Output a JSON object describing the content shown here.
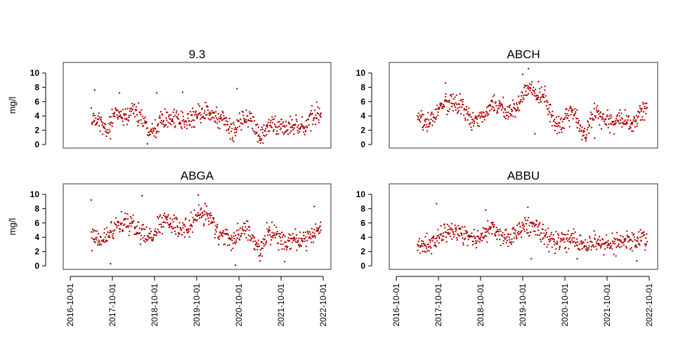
{
  "chart_data": [
    {
      "type": "scatter",
      "title": "9.3",
      "ylabel": "mg/l",
      "ylim": [
        0,
        10
      ],
      "yticks": [
        0,
        2,
        4,
        6,
        8,
        10
      ],
      "xlim": [
        "2016-10-01",
        "2022-10-01"
      ],
      "point_color": "#b00000",
      "trend": [
        [
          "2017-04-01",
          3.6
        ],
        [
          "2017-06-15",
          3.0
        ],
        [
          "2017-08-20",
          2.1
        ],
        [
          "2017-10-20",
          4.3
        ],
        [
          "2018-01-10",
          4.0
        ],
        [
          "2018-03-20",
          4.7
        ],
        [
          "2018-05-20",
          4.3
        ],
        [
          "2018-08-01",
          2.6
        ],
        [
          "2018-10-15",
          2.3
        ],
        [
          "2018-12-15",
          4.0
        ],
        [
          "2019-02-15",
          3.6
        ],
        [
          "2019-04-15",
          3.3
        ],
        [
          "2019-06-15",
          3.0
        ],
        [
          "2019-09-01",
          3.8
        ],
        [
          "2019-11-01",
          4.3
        ],
        [
          "2019-12-15",
          4.6
        ],
        [
          "2020-03-01",
          3.9
        ],
        [
          "2020-06-01",
          3.3
        ],
        [
          "2020-08-15",
          1.8
        ],
        [
          "2020-10-15",
          3.3
        ],
        [
          "2020-12-15",
          3.8
        ],
        [
          "2021-03-01",
          1.8
        ],
        [
          "2021-04-15",
          1.1
        ],
        [
          "2021-06-15",
          2.8
        ],
        [
          "2021-08-15",
          2.5
        ],
        [
          "2021-10-15",
          2.2
        ],
        [
          "2021-12-15",
          2.5
        ],
        [
          "2022-03-01",
          2.4
        ],
        [
          "2022-05-15",
          2.6
        ],
        [
          "2022-07-01",
          3.8
        ],
        [
          "2022-08-15",
          4.3
        ],
        [
          "2022-09-15",
          4.4
        ]
      ],
      "outliers": [
        [
          "2017-05-01",
          7.6
        ],
        [
          "2017-09-15",
          0.8
        ],
        [
          "2017-12-01",
          7.2
        ],
        [
          "2018-08-01",
          0.1
        ],
        [
          "2018-10-20",
          7.2
        ],
        [
          "2019-06-01",
          7.3
        ],
        [
          "2020-09-15",
          7.8
        ],
        [
          "2021-04-01",
          0.8
        ]
      ]
    },
    {
      "type": "scatter",
      "title": "ABCH",
      "ylabel": "",
      "ylim": [
        0,
        10
      ],
      "yticks": [
        0,
        2,
        4,
        6,
        8,
        10
      ],
      "xlim": [
        "2016-10-01",
        "2022-10-01"
      ],
      "point_color": "#b00000",
      "trend": [
        [
          "2017-04-01",
          3.7
        ],
        [
          "2017-06-15",
          2.6
        ],
        [
          "2017-08-15",
          3.6
        ],
        [
          "2017-10-15",
          5.2
        ],
        [
          "2018-01-01",
          6.3
        ],
        [
          "2018-03-01",
          5.6
        ],
        [
          "2018-05-01",
          5.0
        ],
        [
          "2018-07-15",
          3.4
        ],
        [
          "2018-09-15",
          3.2
        ],
        [
          "2018-11-15",
          4.5
        ],
        [
          "2019-01-15",
          6.0
        ],
        [
          "2019-03-15",
          5.2
        ],
        [
          "2019-05-15",
          4.6
        ],
        [
          "2019-07-15",
          4.8
        ],
        [
          "2019-09-15",
          5.9
        ],
        [
          "2019-11-01",
          7.5
        ],
        [
          "2019-12-15",
          8.2
        ],
        [
          "2020-02-15",
          6.5
        ],
        [
          "2020-04-15",
          6.5
        ],
        [
          "2020-06-15",
          3.6
        ],
        [
          "2020-08-15",
          2.5
        ],
        [
          "2020-10-15",
          3.8
        ],
        [
          "2020-12-15",
          4.3
        ],
        [
          "2021-02-15",
          2.1
        ],
        [
          "2021-04-01",
          1.4
        ],
        [
          "2021-06-01",
          4.0
        ],
        [
          "2021-08-01",
          4.2
        ],
        [
          "2021-10-01",
          3.2
        ],
        [
          "2021-12-01",
          3.3
        ],
        [
          "2022-02-01",
          3.8
        ],
        [
          "2022-04-01",
          2.8
        ],
        [
          "2022-06-01",
          3.3
        ],
        [
          "2022-07-15",
          4.5
        ],
        [
          "2022-09-15",
          5.5
        ]
      ],
      "outliers": [
        [
          "2017-12-01",
          8.6
        ],
        [
          "2019-10-01",
          9.8
        ],
        [
          "2019-11-20",
          10.6
        ],
        [
          "2020-02-15",
          8.8
        ],
        [
          "2020-01-15",
          1.5
        ],
        [
          "2021-04-01",
          0.8
        ],
        [
          "2021-06-15",
          0.9
        ]
      ]
    },
    {
      "type": "scatter",
      "title": "ABGA",
      "ylabel": "mg/l",
      "ylim": [
        0,
        10
      ],
      "yticks": [
        0,
        2,
        4,
        6,
        8,
        10
      ],
      "xlim": [
        "2016-10-01",
        "2022-10-01"
      ],
      "xticks": [
        "2016-10-01",
        "2017-10-01",
        "2018-10-01",
        "2019-10-01",
        "2020-10-01",
        "2021-10-01",
        "2022-10-01"
      ],
      "point_color": "#b00000",
      "trend": [
        [
          "2017-04-01",
          3.9
        ],
        [
          "2017-06-15",
          3.5
        ],
        [
          "2017-08-15",
          4.3
        ],
        [
          "2017-10-15",
          5.3
        ],
        [
          "2018-01-01",
          6.1
        ],
        [
          "2018-03-01",
          6.0
        ],
        [
          "2018-05-01",
          5.0
        ],
        [
          "2018-07-15",
          3.8
        ],
        [
          "2018-09-15",
          4.1
        ],
        [
          "2018-11-15",
          5.6
        ],
        [
          "2019-01-15",
          6.5
        ],
        [
          "2019-03-15",
          5.5
        ],
        [
          "2019-05-15",
          5.1
        ],
        [
          "2019-07-15",
          5.3
        ],
        [
          "2019-09-15",
          6.4
        ],
        [
          "2019-11-01",
          7.3
        ],
        [
          "2019-12-15",
          7.5
        ],
        [
          "2020-02-15",
          6.1
        ],
        [
          "2020-04-15",
          4.6
        ],
        [
          "2020-06-15",
          3.9
        ],
        [
          "2020-08-15",
          3.6
        ],
        [
          "2020-10-15",
          4.6
        ],
        [
          "2020-12-15",
          4.9
        ],
        [
          "2021-02-15",
          3.0
        ],
        [
          "2021-04-01",
          2.2
        ],
        [
          "2021-06-01",
          4.5
        ],
        [
          "2021-08-01",
          4.6
        ],
        [
          "2021-10-01",
          3.6
        ],
        [
          "2021-12-01",
          3.4
        ],
        [
          "2022-02-01",
          4.0
        ],
        [
          "2022-04-01",
          3.1
        ],
        [
          "2022-06-01",
          3.9
        ],
        [
          "2022-07-15",
          4.6
        ],
        [
          "2022-09-15",
          5.8
        ]
      ],
      "outliers": [
        [
          "2017-04-01",
          9.2
        ],
        [
          "2017-09-15",
          0.3
        ],
        [
          "2018-06-15",
          9.8
        ],
        [
          "2019-10-15",
          9.9
        ],
        [
          "2020-09-01",
          0.1
        ],
        [
          "2021-04-01",
          0.7
        ],
        [
          "2021-11-01",
          0.6
        ],
        [
          "2022-07-15",
          8.3
        ]
      ]
    },
    {
      "type": "scatter",
      "title": "ABBU",
      "ylabel": "",
      "ylim": [
        0,
        10
      ],
      "yticks": [
        0,
        2,
        4,
        6,
        8,
        10
      ],
      "xlim": [
        "2016-10-01",
        "2022-10-01"
      ],
      "xticks": [
        "2016-10-01",
        "2017-10-01",
        "2018-10-01",
        "2019-10-01",
        "2020-10-01",
        "2021-10-01",
        "2022-10-01"
      ],
      "point_color": "#b00000",
      "trend": [
        [
          "2017-04-01",
          3.3
        ],
        [
          "2017-06-15",
          2.6
        ],
        [
          "2017-08-15",
          3.5
        ],
        [
          "2017-10-15",
          4.3
        ],
        [
          "2018-01-01",
          4.5
        ],
        [
          "2018-03-01",
          4.6
        ],
        [
          "2018-05-01",
          4.4
        ],
        [
          "2018-07-15",
          3.6
        ],
        [
          "2018-09-15",
          3.9
        ],
        [
          "2018-11-15",
          4.6
        ],
        [
          "2019-01-15",
          5.3
        ],
        [
          "2019-03-15",
          4.4
        ],
        [
          "2019-05-15",
          4.1
        ],
        [
          "2019-07-15",
          4.4
        ],
        [
          "2019-09-15",
          5.1
        ],
        [
          "2019-11-01",
          5.6
        ],
        [
          "2019-12-15",
          5.4
        ],
        [
          "2020-02-15",
          5.0
        ],
        [
          "2020-04-15",
          3.9
        ],
        [
          "2020-06-15",
          3.4
        ],
        [
          "2020-08-15",
          3.5
        ],
        [
          "2020-10-15",
          3.8
        ],
        [
          "2020-12-15",
          3.6
        ],
        [
          "2021-02-15",
          3.1
        ],
        [
          "2021-04-01",
          2.7
        ],
        [
          "2021-06-01",
          3.5
        ],
        [
          "2021-08-01",
          3.4
        ],
        [
          "2021-10-01",
          2.8
        ],
        [
          "2021-12-01",
          2.9
        ],
        [
          "2022-02-01",
          3.2
        ],
        [
          "2022-04-01",
          3.3
        ],
        [
          "2022-06-01",
          3.1
        ],
        [
          "2022-07-15",
          3.8
        ],
        [
          "2022-09-15",
          4.1
        ]
      ],
      "outliers": [
        [
          "2017-09-15",
          8.7
        ],
        [
          "2018-11-15",
          7.8
        ],
        [
          "2019-11-15",
          8.2
        ],
        [
          "2019-12-15",
          1.0
        ],
        [
          "2021-01-15",
          1.0
        ],
        [
          "2022-06-15",
          0.7
        ]
      ]
    }
  ]
}
